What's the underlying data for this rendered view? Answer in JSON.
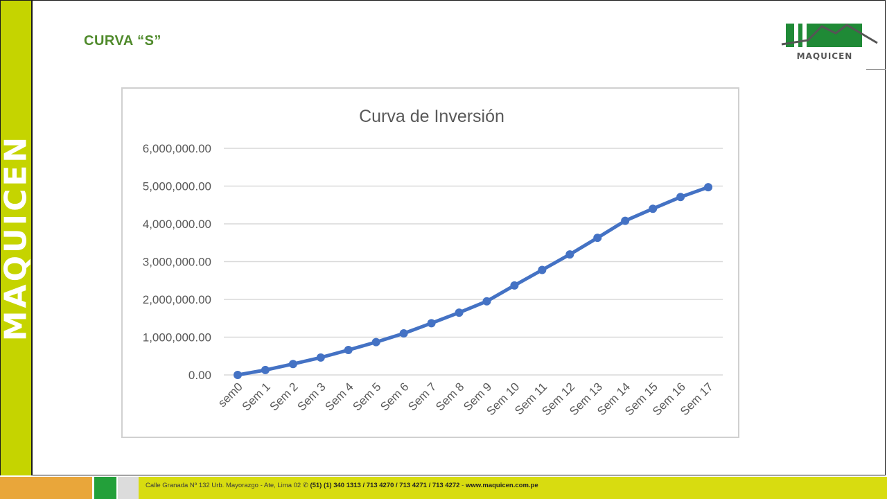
{
  "slide": {
    "title": "CURVA “S”",
    "side_brand": "MAQUICEN",
    "logo_caption": "MAQUICEN",
    "colors": {
      "side_band": "#c5d400",
      "title": "#4f8a2b",
      "footer_bar": "#d8dc10",
      "logo_green": "#1f8a36"
    }
  },
  "footer": {
    "address": "Calle Granada Nº 132 Urb. Mayorazgo - Ate, Lima 02 ✆",
    "phones": "(51) (1) 340 1313 / 713 4270 / 713 4271 / 713 4272",
    "separator": " - ",
    "website": "www.maquicen.com.pe"
  },
  "chart_data": {
    "type": "line",
    "title": "Curva de Inversión",
    "xlabel": "",
    "ylabel": "",
    "categories": [
      "sem0",
      "Sem 1",
      "Sem 2",
      "Sem 3",
      "Sem 4",
      "Sem 5",
      "Sem 6",
      "Sem 7",
      "Sem 8",
      "Sem 9",
      "Sem 10",
      "Sem 11",
      "Sem 12",
      "Sem 13",
      "Sem 14",
      "Sem 15",
      "Sem 16",
      "Sem 17"
    ],
    "series": [
      {
        "values": [
          0,
          130000,
          290000,
          460000,
          660000,
          870000,
          1100000,
          1370000,
          1650000,
          1950000,
          2370000,
          2780000,
          3190000,
          3630000,
          4080000,
          4400000,
          4710000,
          4970000
        ],
        "color": "#4472c4"
      }
    ],
    "ylim": [
      0,
      6000000
    ],
    "yticks": [
      "0.00",
      "1,000,000.00",
      "2,000,000.00",
      "3,000,000.00",
      "4,000,000.00",
      "5,000,000.00",
      "6,000,000.00"
    ],
    "ytick_values": [
      0,
      1000000,
      2000000,
      3000000,
      4000000,
      5000000,
      6000000
    ],
    "grid": true,
    "legend": "none"
  }
}
